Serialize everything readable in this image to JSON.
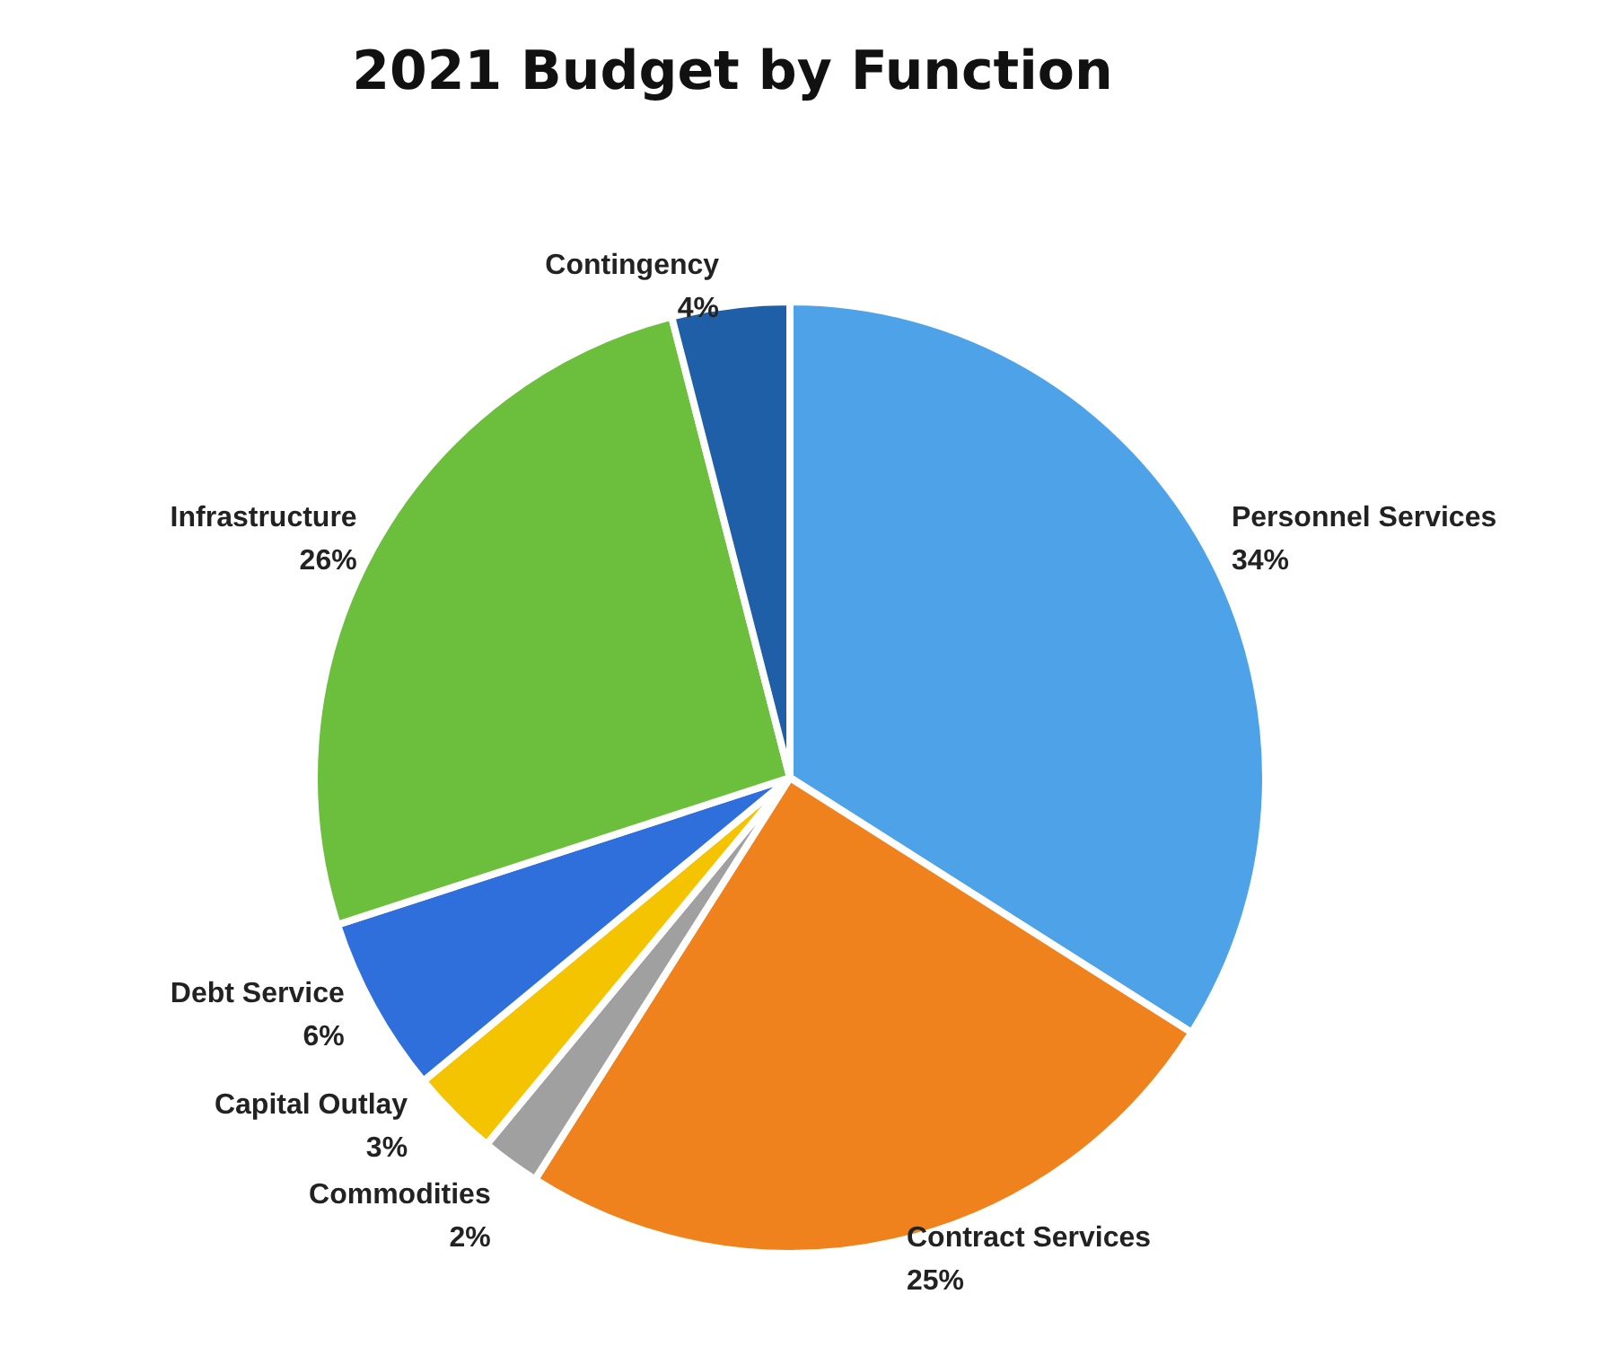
{
  "chart_data": {
    "type": "pie",
    "title": "2021 Budget by Function",
    "categories": [
      "Personnel Services",
      "Contract Services",
      "Commodities",
      "Capital Outlay",
      "Debt Service",
      "Infrastructure",
      "Contingency"
    ],
    "values": [
      34,
      25,
      2,
      3,
      6,
      26,
      4
    ],
    "value_labels": [
      "34%",
      "25%",
      "2%",
      "3%",
      "6%",
      "26%",
      "4%"
    ],
    "colors": [
      "#4ea3e8",
      "#f0821e",
      "#a0a0a0",
      "#f5c400",
      "#2e6fdc",
      "#6cbf3c",
      "#1f5fa8"
    ]
  }
}
